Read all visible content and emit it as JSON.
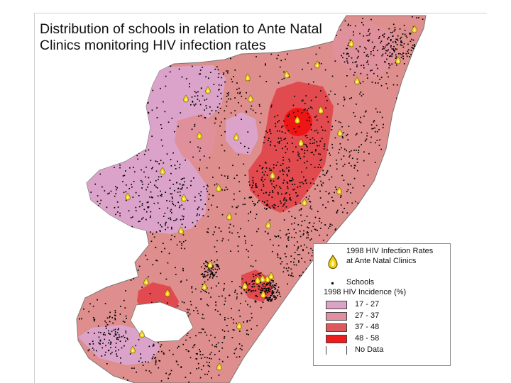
{
  "title": {
    "line1": "Distribution of schools in relation to Ante Natal",
    "line2": "Clinics monitoring HIV infection rates"
  },
  "legend": {
    "clinic_line1": "1998 HIV Infection Rates",
    "clinic_line2": "at Ante Natal Clinics",
    "schools_label": "Schools",
    "incidence_title": "1998 HIV Incidence (%)",
    "classes": [
      {
        "label": "17 - 27",
        "color": "#dca3c7"
      },
      {
        "label": "27 - 37",
        "color": "#df8fa0"
      },
      {
        "label": "37 - 48",
        "color": "#dc5a5e"
      },
      {
        "label": "48 - 58",
        "color": "#ee1c1c"
      },
      {
        "label": "No Data",
        "color": "#ffffff"
      }
    ]
  },
  "colors": {
    "base": "#de8e8c",
    "pink": "#dba3c9",
    "mid": "#e0909b",
    "red": "#e14a4e",
    "red_core": "#f01515",
    "school_dot": "#000000",
    "clinic_marker": "#f2d21b"
  }
}
